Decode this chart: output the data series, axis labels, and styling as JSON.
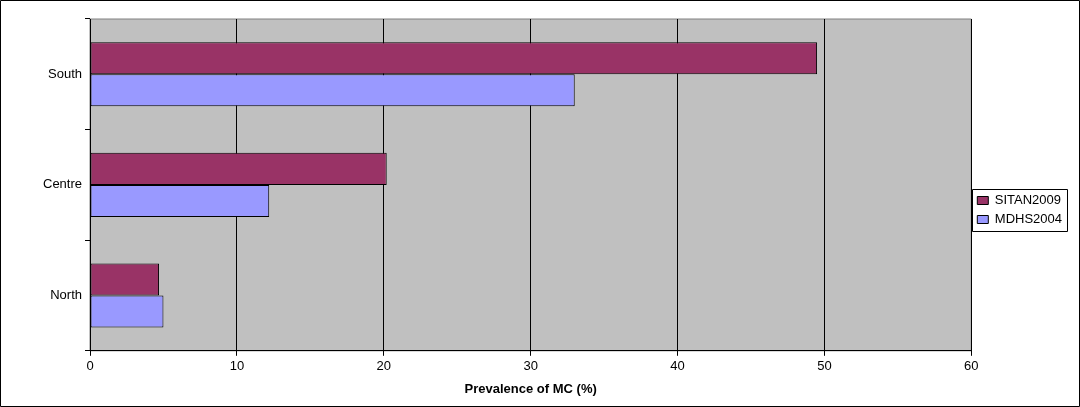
{
  "chart_data": {
    "type": "bar",
    "orientation": "horizontal",
    "xlabel": "Prevalence of MC (%)",
    "categories": [
      "South",
      "Centre",
      "North"
    ],
    "series": [
      {
        "name": "SITAN2009",
        "color": "#993366",
        "values": [
          49.5,
          20.2,
          4.7
        ]
      },
      {
        "name": "MDHS2004",
        "color": "#9999ff",
        "values": [
          33.0,
          12.2,
          5.0
        ]
      }
    ],
    "xlim": [
      0,
      60
    ],
    "xticks": [
      0,
      10,
      20,
      30,
      40,
      50,
      60
    ],
    "grid": "x",
    "legend": "right"
  }
}
